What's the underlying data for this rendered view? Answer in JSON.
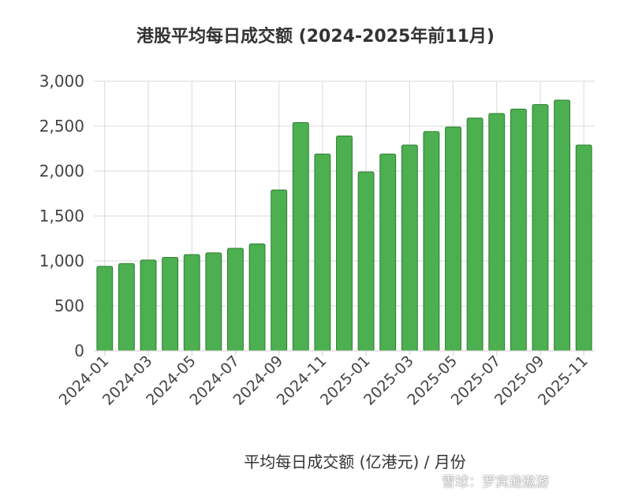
{
  "chart_data": {
    "type": "bar",
    "title": "港股平均每日成交额 (2024-2025年前11月)",
    "xlabel": "平均每日成交额 (亿港元) / 月份",
    "ylabel": "",
    "ylim": [
      0,
      3000
    ],
    "yticks": [
      "0",
      "500",
      "1,000",
      "1,500",
      "2,000",
      "2,500",
      "3,000"
    ],
    "grid": true,
    "bar_color": "#4caf50",
    "bar_border_color": "#2e7d32",
    "categories": [
      "2024-01",
      "2024-02",
      "2024-03",
      "2024-04",
      "2024-05",
      "2024-06",
      "2024-07",
      "2024-08",
      "2024-09",
      "2024-10",
      "2024-11",
      "2024-12",
      "2025-01",
      "2025-02",
      "2025-03",
      "2025-04",
      "2025-05",
      "2025-06",
      "2025-07",
      "2025-08",
      "2025-09",
      "2025-10",
      "2025-11"
    ],
    "values": [
      940,
      970,
      1010,
      1040,
      1070,
      1090,
      1140,
      1190,
      1790,
      2540,
      2190,
      2390,
      1990,
      2190,
      2290,
      2440,
      2490,
      2590,
      2640,
      2690,
      2740,
      2790,
      2290
    ],
    "xtick_labels": [
      "2024-01",
      "2024-03",
      "2024-05",
      "2024-07",
      "2024-09",
      "2024-11",
      "2025-01",
      "2025-03",
      "2025-05",
      "2025-07",
      "2025-09",
      "2025-11"
    ]
  },
  "watermark": "雪球：罗宾逊遨游"
}
